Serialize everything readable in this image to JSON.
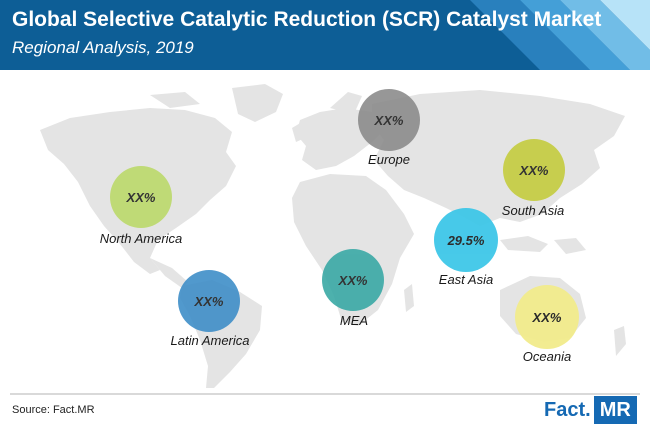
{
  "header": {
    "title": "Global Selective Catalytic Reduction (SCR) Catalyst Market",
    "subtitle": "Regional Analysis, 2019",
    "color": "#0d5e96"
  },
  "regions": [
    {
      "name": "North America",
      "value": "XX%",
      "color": "#bcd96b"
    },
    {
      "name": "Latin America",
      "value": "XX%",
      "color": "#3f8ec8"
    },
    {
      "name": "Europe",
      "value": "XX%",
      "color": "#8c8c8c"
    },
    {
      "name": "MEA",
      "value": "XX%",
      "color": "#3aa9a5"
    },
    {
      "name": "South Asia",
      "value": "XX%",
      "color": "#c4cc3e"
    },
    {
      "name": "East Asia",
      "value": "29.5%",
      "color": "#3ec7e8"
    },
    {
      "name": "Oceania",
      "value": "XX%",
      "color": "#f2ec8c"
    }
  ],
  "footer": {
    "source": "Source: Fact.MR",
    "logo_left": "Fact.",
    "logo_right": "MR"
  }
}
